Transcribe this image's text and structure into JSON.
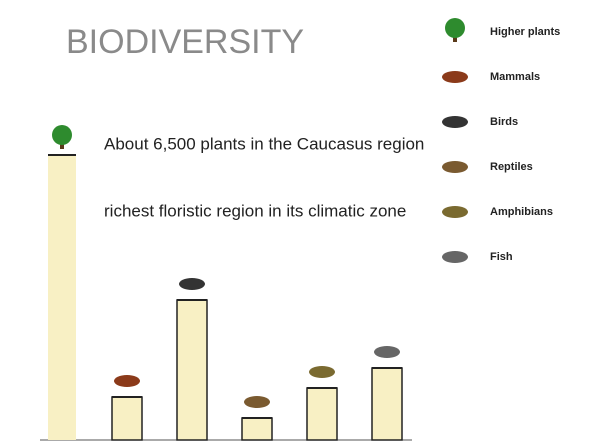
{
  "chart_data": {
    "type": "bar",
    "title": "BIODIVERSITY",
    "annotations": [
      "About 6,500 plants in the Caucasus region",
      "richest floristic region in its climatic zone"
    ],
    "categories": [
      "Higher plants",
      "Mammals",
      "Birds",
      "Reptiles",
      "Amphibians",
      "Fish"
    ],
    "values": [
      285,
      43,
      140,
      22,
      52,
      72
    ],
    "color": "#f8f0c4",
    "ylim": [
      0,
      300
    ]
  }
}
